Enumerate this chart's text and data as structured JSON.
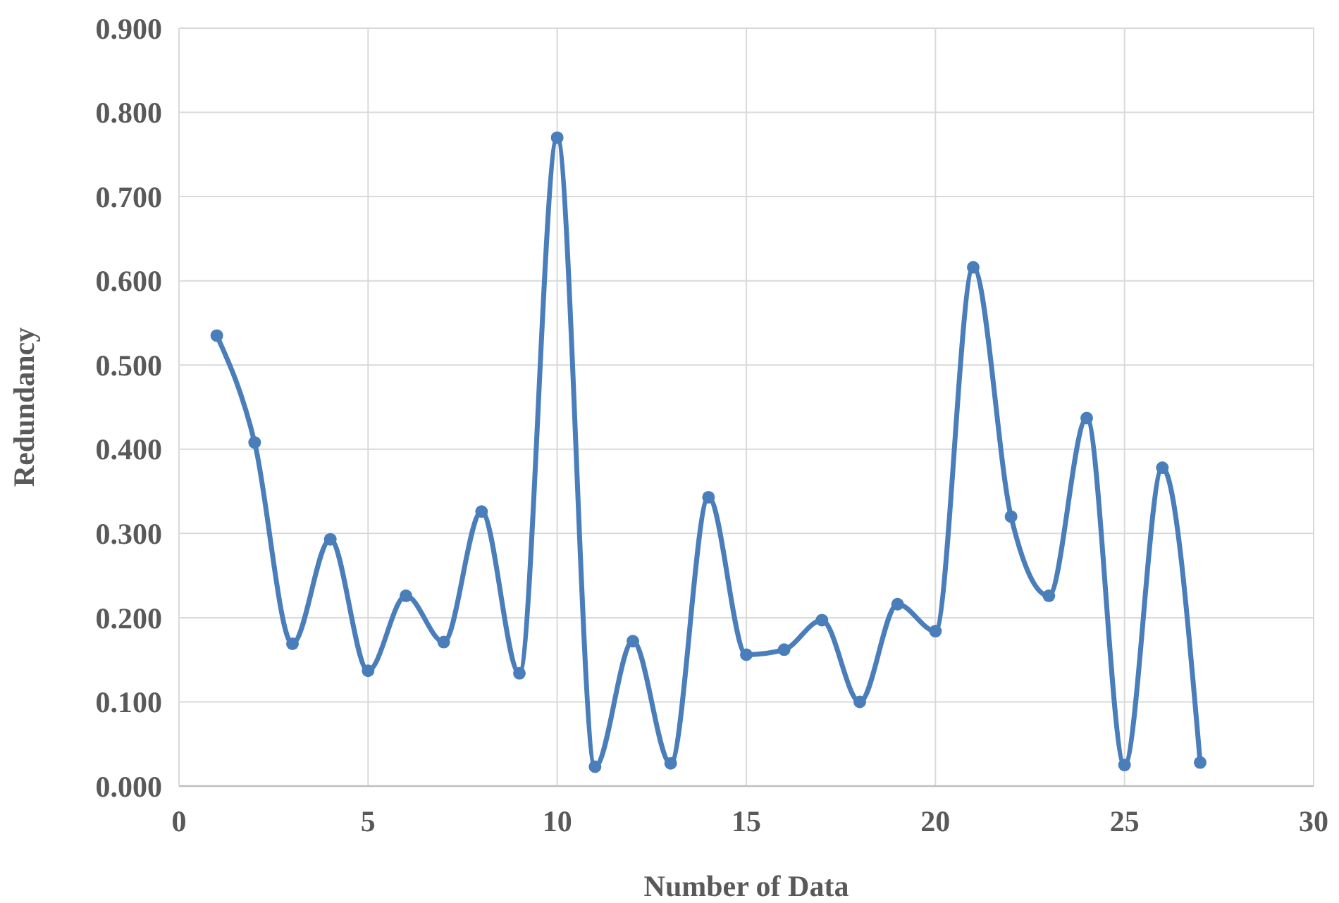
{
  "chart_data": {
    "type": "line",
    "xlabel": "Number of Data",
    "ylabel": "Redundancy",
    "x": [
      1,
      2,
      3,
      4,
      5,
      6,
      7,
      8,
      9,
      10,
      11,
      12,
      13,
      14,
      15,
      16,
      17,
      18,
      19,
      20,
      21,
      22,
      23,
      24,
      25,
      26,
      27
    ],
    "series": [
      {
        "color": "#4a7ebb",
        "values": [
          0.535,
          0.408,
          0.169,
          0.293,
          0.137,
          0.226,
          0.171,
          0.326,
          0.134,
          0.77,
          0.023,
          0.172,
          0.027,
          0.343,
          0.156,
          0.162,
          0.197,
          0.1,
          0.216,
          0.184,
          0.616,
          0.32,
          0.226,
          0.437,
          0.025,
          0.378,
          0.028
        ]
      }
    ],
    "xlim": [
      0,
      30
    ],
    "xticks": [
      0,
      5,
      10,
      15,
      20,
      25,
      30
    ],
    "ylim": [
      0,
      0.9
    ],
    "yticks": [
      {
        "value": 0,
        "label": "0.000"
      },
      {
        "value": 0.1,
        "label": "0.100"
      },
      {
        "value": 0.2,
        "label": "0.200"
      },
      {
        "value": 0.3,
        "label": "0.300"
      },
      {
        "value": 0.4,
        "label": "0.400"
      },
      {
        "value": 0.5,
        "label": "0.500"
      },
      {
        "value": 0.6,
        "label": "0.600"
      },
      {
        "value": 0.7,
        "label": "0.700"
      },
      {
        "value": 0.8,
        "label": "0.800"
      },
      {
        "value": 0.9,
        "label": "0.900"
      }
    ],
    "grid": true,
    "marker": "circle",
    "line_style": "solid"
  }
}
